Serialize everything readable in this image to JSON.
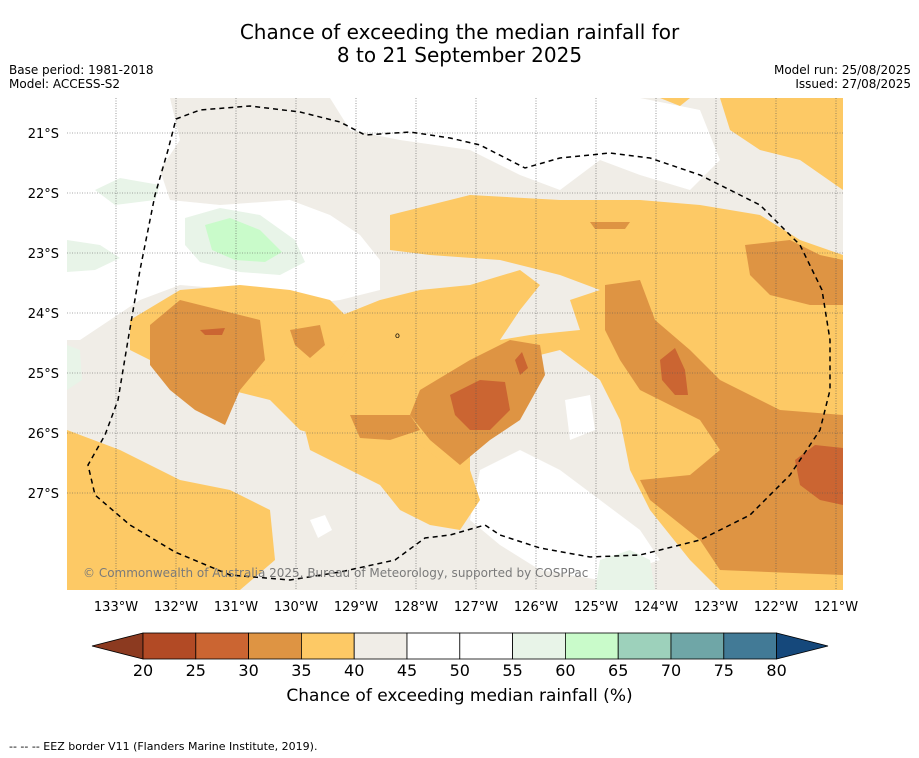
{
  "title": {
    "line1": "Chance of exceeding the median rainfall for",
    "line2": "8 to 21 September 2025"
  },
  "meta_left": {
    "base_period": "Base period: 1981-2018",
    "model": "Model: ACCESS-S2"
  },
  "meta_right": {
    "model_run": "Model run: 25/08/2025",
    "issued": "Issued: 27/08/2025"
  },
  "map": {
    "lat_labels": [
      "21°S",
      "22°S",
      "23°S",
      "24°S",
      "25°S",
      "26°S",
      "27°S"
    ],
    "lon_labels": [
      "133°W",
      "132°W",
      "131°W",
      "130°W",
      "129°W",
      "128°W",
      "127°W",
      "126°W",
      "125°W",
      "124°W",
      "123°W",
      "122°W",
      "121°W"
    ],
    "copyright": "© Commonwealth of Australia 2025, Bureau of Meteorology, supported by COSPPac",
    "colors": {
      "c20": "#b24a25",
      "c25": "#cb6532",
      "c30": "#de9443",
      "c35": "#fdc965",
      "c40": "#f0ede7",
      "c45": "#ffffff",
      "c55": "#e8f4e8",
      "c60": "#c9fbca",
      "c65": "#9dd1bb",
      "c70": "#6fa6a7",
      "c75": "#427a96",
      "c80": "#15487b",
      "below20": "#8c3a20"
    }
  },
  "colorbar": {
    "ticks": [
      "20",
      "25",
      "30",
      "35",
      "40",
      "45",
      "50",
      "55",
      "60",
      "65",
      "70",
      "75",
      "80"
    ],
    "label": "Chance of exceeding median rainfall (%)"
  },
  "footer": "--  --  -- EEZ border V11 (Flanders Marine Institute, 2019)."
}
